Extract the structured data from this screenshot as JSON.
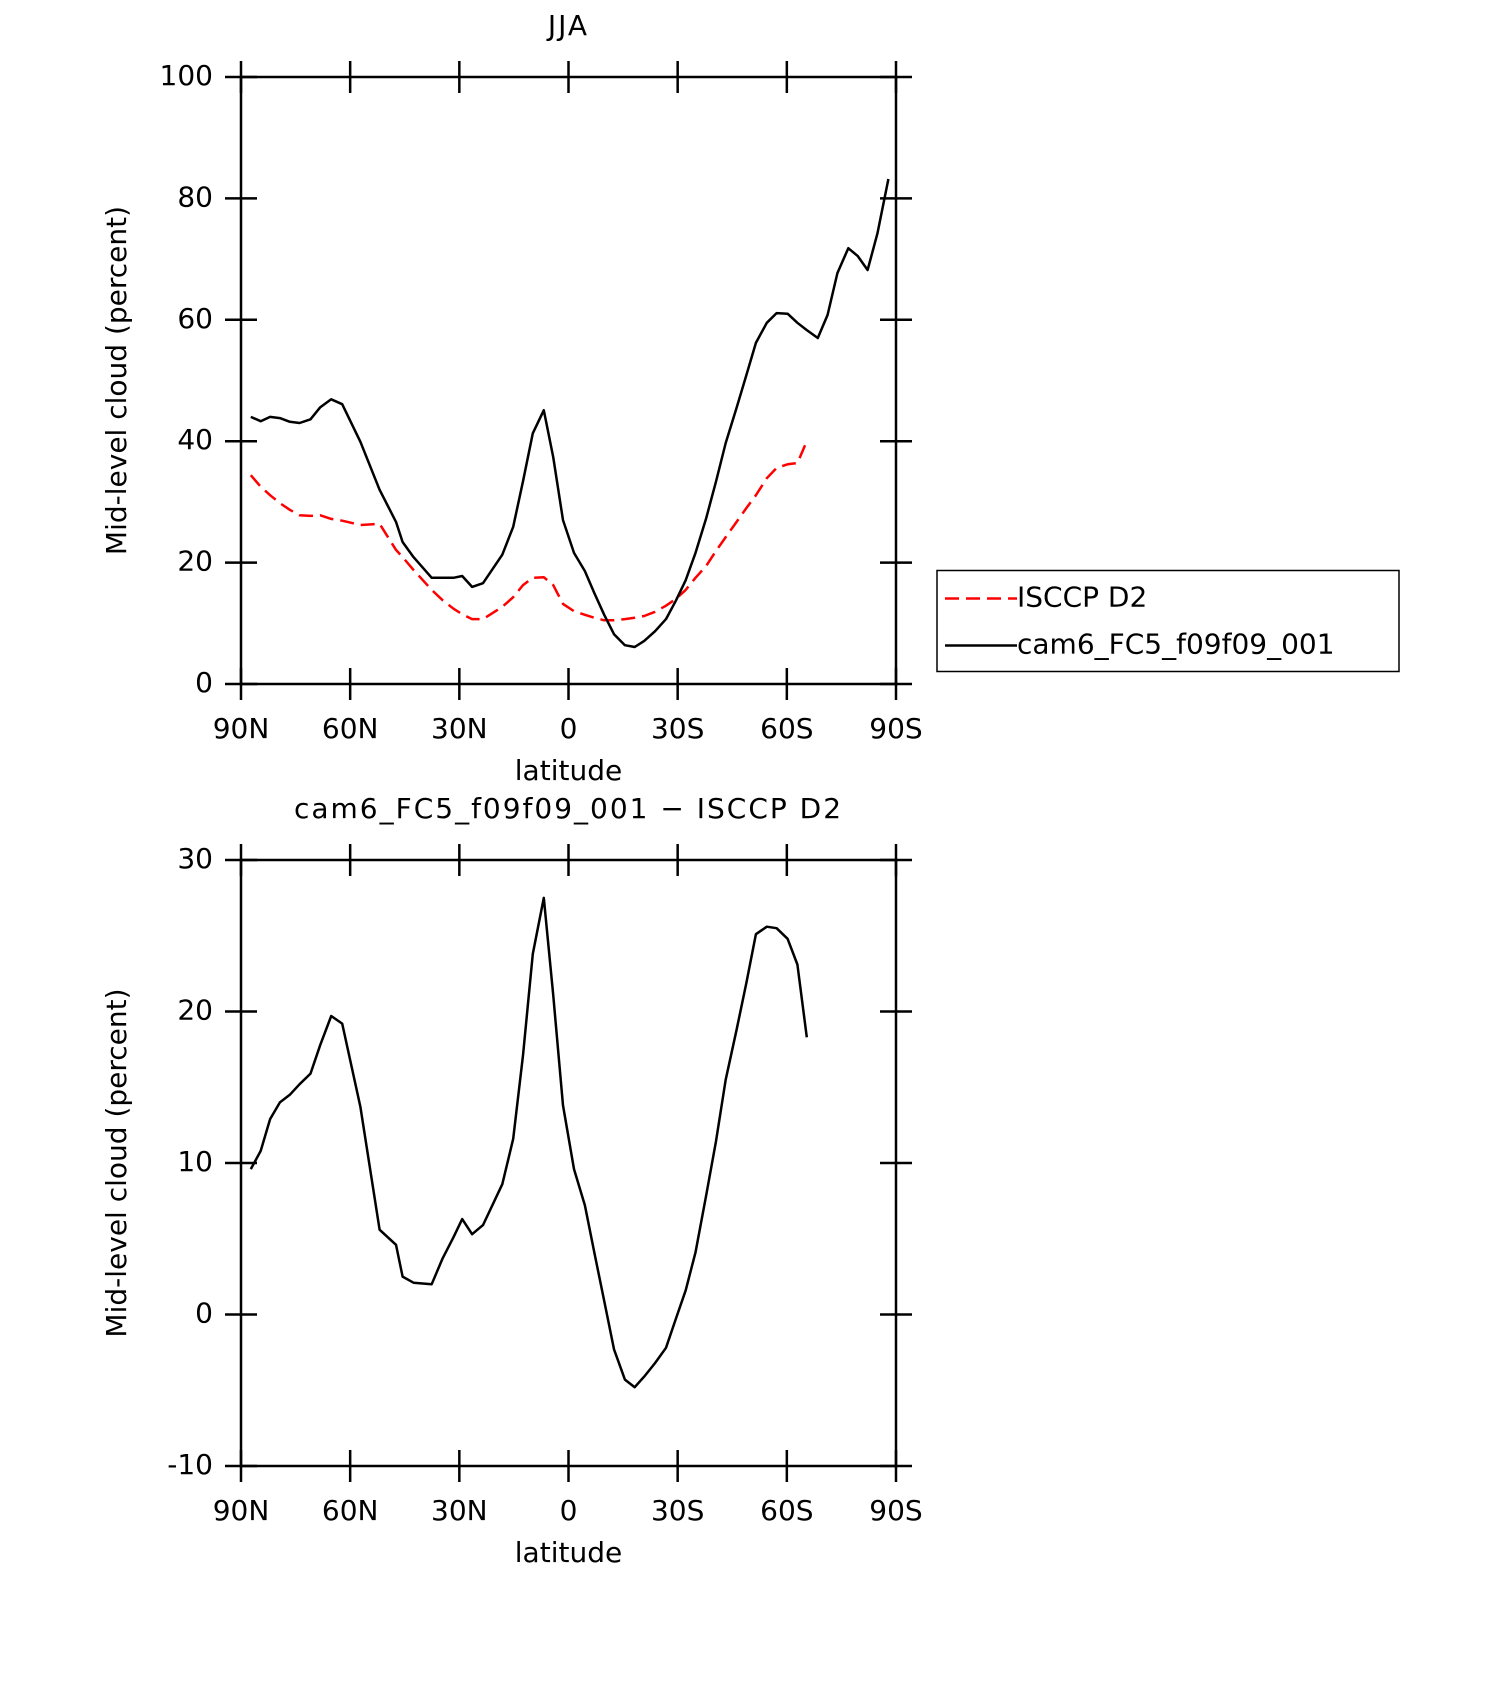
{
  "chart_data": [
    {
      "type": "line",
      "title": "JJA",
      "xlabel": "latitude",
      "ylabel": "Mid-level cloud (percent)",
      "x": [
        87.3,
        84.6,
        82.0,
        79.3,
        76.6,
        73.9,
        70.9,
        68.2,
        65.2,
        62.2,
        57.2,
        51.9,
        47.4,
        45.6,
        42.6,
        37.6,
        34.6,
        31.6,
        29.2,
        26.5,
        23.5,
        18.2,
        15.2,
        12.5,
        9.8,
        6.8,
        4.2,
        1.5,
        -1.5,
        -4.5,
        -7.1,
        -9.8,
        -12.5,
        -15.5,
        -18.2,
        -20.8,
        -23.8,
        -26.8,
        -29.5,
        -32.2,
        -34.9,
        -37.8,
        -40.5,
        -43.2,
        -46.2,
        -48.9,
        -51.5,
        -54.5,
        -57.2,
        -60.2,
        -62.9,
        -65.5,
        -68.5,
        -71.2,
        -73.9,
        -76.9,
        -79.5,
        -82.2,
        -84.9,
        -87.9
      ],
      "series": [
        {
          "name": "ISCCP D2",
          "color": "#ff0000",
          "dashed": true,
          "values": [
            34.4,
            32.5,
            31.1,
            29.8,
            28.7,
            27.8,
            27.7,
            27.8,
            27.2,
            26.9,
            26.2,
            26.4,
            22.1,
            20.9,
            18.8,
            15.5,
            13.8,
            12.4,
            11.5,
            10.7,
            10.7,
            12.7,
            14.3,
            16.3,
            17.5,
            17.6,
            16.3,
            13.2,
            12.0,
            11.4,
            10.9,
            10.5,
            10.5,
            10.7,
            10.9,
            11.2,
            11.9,
            12.9,
            14.0,
            15.5,
            17.5,
            19.4,
            21.9,
            24.2,
            26.7,
            29.0,
            31.1,
            33.9,
            35.6,
            36.2,
            36.4,
            40.0,
            null,
            null,
            null,
            null,
            null,
            null,
            null,
            null
          ]
        },
        {
          "name": "cam6_FC5_f09f09_001",
          "color": "#000000",
          "dashed": false,
          "values": [
            44.0,
            43.3,
            44.0,
            43.8,
            43.2,
            43.0,
            43.6,
            45.6,
            46.9,
            46.1,
            39.9,
            32.0,
            26.7,
            23.4,
            20.9,
            17.5,
            17.5,
            17.5,
            17.8,
            16.0,
            16.6,
            21.3,
            25.9,
            33.4,
            41.3,
            45.1,
            37.4,
            27.0,
            21.6,
            18.6,
            15.0,
            11.4,
            8.2,
            6.4,
            6.1,
            7.1,
            8.7,
            10.7,
            13.7,
            17.1,
            21.6,
            27.2,
            33.3,
            39.7,
            45.5,
            50.9,
            56.2,
            59.5,
            61.1,
            61.0,
            59.5,
            58.3,
            57.0,
            60.8,
            67.7,
            71.8,
            70.5,
            68.2,
            74.2,
            83.2
          ]
        }
      ],
      "xlim": [
        90,
        -90
      ],
      "xticks": [
        {
          "value": 90,
          "label": "90N"
        },
        {
          "value": 60,
          "label": "60N"
        },
        {
          "value": 30,
          "label": "30N"
        },
        0,
        {
          "value": -30,
          "label": "30S"
        },
        {
          "value": -60,
          "label": "60S"
        },
        {
          "value": -90,
          "label": "90S"
        }
      ],
      "ylim": [
        0,
        100
      ],
      "yticks": [
        0,
        20,
        40,
        60,
        80,
        100
      ],
      "legend": "right"
    },
    {
      "type": "line",
      "title": "cam6_FC5_f09f09_001 − ISCCP D2",
      "xlabel": "latitude",
      "ylabel": "Mid-level cloud (percent)",
      "x": [
        87.3,
        84.6,
        82.0,
        79.3,
        76.6,
        73.9,
        70.9,
        68.2,
        65.2,
        62.2,
        57.2,
        51.9,
        47.4,
        45.6,
        42.6,
        37.6,
        34.6,
        31.6,
        29.2,
        26.5,
        23.5,
        18.2,
        15.2,
        12.5,
        9.8,
        6.8,
        4.2,
        1.5,
        -1.5,
        -4.5,
        -7.1,
        -9.8,
        -12.5,
        -15.5,
        -18.2,
        -20.8,
        -23.8,
        -26.8,
        -29.5,
        -32.2,
        -34.9,
        -37.8,
        -40.5,
        -43.2,
        -46.2,
        -48.9,
        -51.5,
        -54.5,
        -57.2,
        -60.2,
        -62.9,
        -65.5
      ],
      "series": [
        {
          "color": "#000000",
          "dashed": false,
          "values": [
            9.6,
            10.8,
            12.9,
            14.0,
            14.5,
            15.2,
            15.9,
            17.8,
            19.7,
            19.2,
            13.7,
            5.6,
            4.6,
            2.5,
            2.1,
            2.0,
            3.7,
            5.1,
            6.3,
            5.3,
            5.9,
            8.6,
            11.6,
            17.1,
            23.8,
            27.5,
            21.1,
            13.8,
            9.6,
            7.2,
            4.1,
            0.9,
            -2.3,
            -4.3,
            -4.8,
            -4.1,
            -3.2,
            -2.2,
            -0.3,
            1.6,
            4.1,
            7.8,
            11.4,
            15.5,
            18.8,
            21.9,
            25.1,
            25.6,
            25.5,
            24.8,
            23.1,
            18.3
          ]
        }
      ],
      "xlim": [
        90,
        -90
      ],
      "xticks": [
        {
          "value": 90,
          "label": "90N"
        },
        {
          "value": 60,
          "label": "60N"
        },
        {
          "value": 30,
          "label": "30N"
        },
        0,
        {
          "value": -30,
          "label": "30S"
        },
        {
          "value": -60,
          "label": "60S"
        },
        {
          "value": -90,
          "label": "90S"
        }
      ],
      "ylim": [
        -10,
        30
      ],
      "yticks": [
        -10,
        0,
        10,
        20,
        30
      ]
    }
  ]
}
